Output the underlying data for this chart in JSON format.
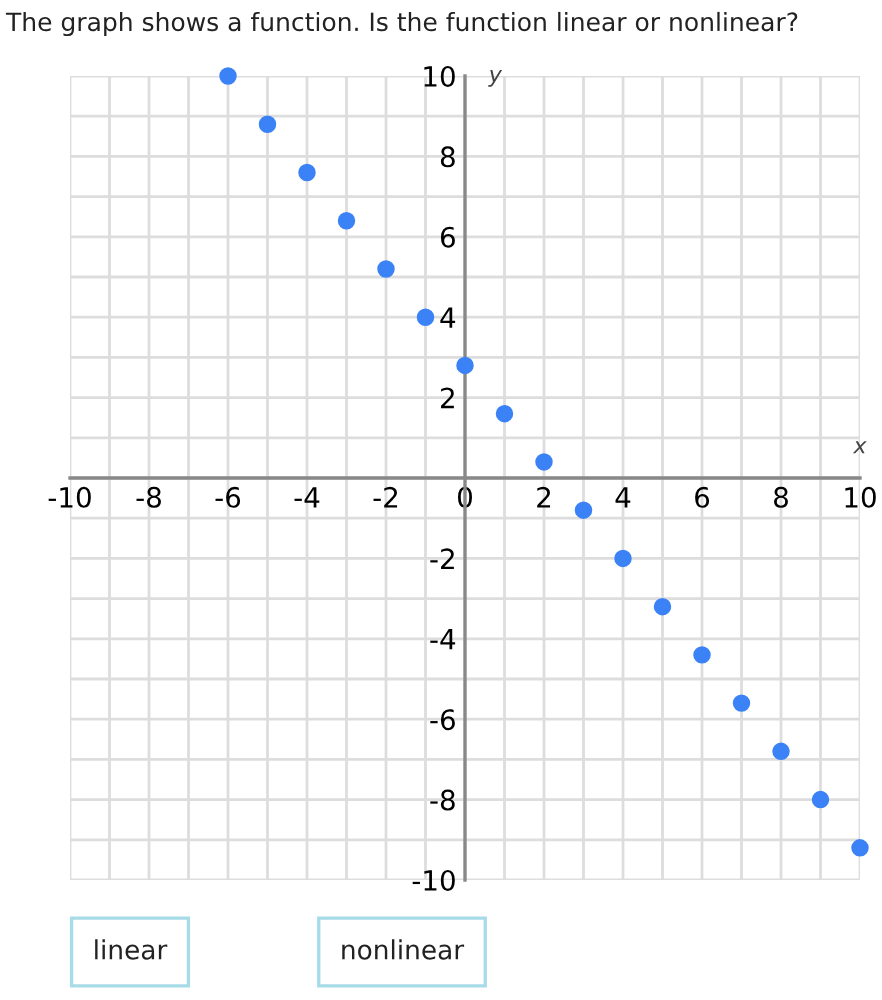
{
  "chart_data": {
    "type": "scatter",
    "title": "The graph shows a function. Is the function linear or nonlinear?",
    "xlabel": "x",
    "ylabel": "y",
    "x": [
      -6,
      -5,
      -4,
      -3,
      -2,
      -1,
      0,
      1,
      2,
      3,
      4,
      5,
      6,
      7,
      8,
      9,
      10
    ],
    "series": [
      {
        "color": "#3b82f6",
        "values": [
          10,
          8.8,
          7.6,
          6.4,
          5.2,
          4,
          2.8,
          1.6,
          0.4,
          -0.8,
          -2,
          -3.2,
          -4.4,
          -5.6,
          -6.8,
          -8,
          -9.2
        ]
      }
    ],
    "marker": "circle",
    "grid": true,
    "xlim": [
      -10,
      10
    ],
    "ylim": [
      -10,
      10
    ],
    "xticks": [
      -10,
      {
        "value": -9,
        "label": null
      },
      -8,
      {
        "value": -7,
        "label": null
      },
      -6,
      {
        "value": -5,
        "label": null
      },
      -4,
      {
        "value": -3,
        "label": null
      },
      -2,
      {
        "value": -1,
        "label": null
      },
      0,
      {
        "value": 1,
        "label": null
      },
      2,
      {
        "value": 3,
        "label": null
      },
      4,
      {
        "value": 5,
        "label": null
      },
      6,
      {
        "value": 7,
        "label": null
      },
      8,
      {
        "value": 9,
        "label": null
      },
      10
    ],
    "yticks": [
      -10,
      {
        "value": -9,
        "label": null
      },
      -8,
      {
        "value": -7,
        "label": null
      },
      -6,
      {
        "value": -5,
        "label": null
      },
      -4,
      {
        "value": -3,
        "label": null
      },
      -2,
      {
        "value": -1,
        "label": null
      },
      {
        "value": 0,
        "label": null
      },
      {
        "value": 1,
        "label": null
      },
      2,
      {
        "value": 3,
        "label": null
      },
      4,
      {
        "value": 5,
        "label": null
      },
      6,
      {
        "value": 7,
        "label": null
      },
      8,
      {
        "value": 9,
        "label": null
      },
      10
    ],
    "annotations": [
      "linear",
      "nonlinear"
    ]
  }
}
